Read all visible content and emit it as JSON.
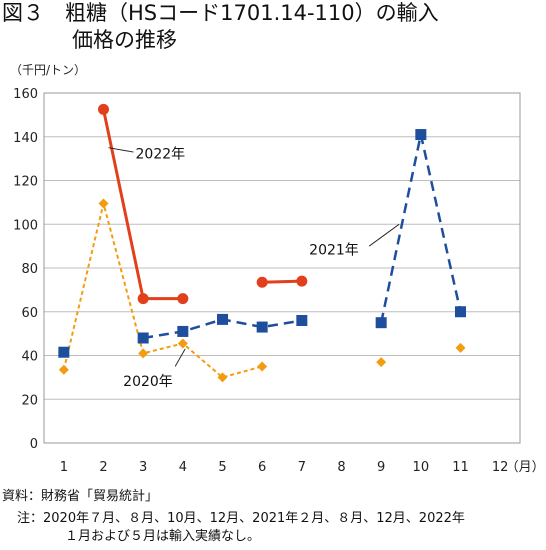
{
  "title": {
    "line1": "図３　粗糖（HSコード1701.14-110）の輸入",
    "line2": "価格の推移"
  },
  "footer": {
    "source": "資料：財務省「貿易統計」",
    "note_line1": "注：2020年７月、８月、10月、12月、2021年２月、８月、12月、2022年",
    "note_line2": "１月および５月は輸入実績なし。"
  },
  "chart_data": {
    "type": "line",
    "ylabel": "（千円/トン）",
    "xlabel": "（月）",
    "ylim": [
      0,
      160
    ],
    "yticks": [
      0,
      20,
      40,
      60,
      80,
      100,
      120,
      140,
      160
    ],
    "categories": [
      "1",
      "2",
      "3",
      "4",
      "5",
      "6",
      "7",
      "8",
      "9",
      "10",
      "11",
      "12"
    ],
    "grid": "horizontal",
    "series": [
      {
        "name": "2020年",
        "color": "#F39C12",
        "style": "dotted",
        "marker": "diamond",
        "values": [
          33.5,
          109.5,
          41,
          45.5,
          30,
          35,
          null,
          null,
          37,
          null,
          43.5,
          null
        ]
      },
      {
        "name": "2021年",
        "color": "#1F4E9C",
        "style": "dashed",
        "marker": "square",
        "values": [
          41.5,
          null,
          48,
          51,
          56.5,
          53,
          56,
          null,
          55,
          141,
          60,
          null
        ]
      },
      {
        "name": "2022年",
        "color": "#E2401C",
        "style": "solid",
        "marker": "circle",
        "values": [
          null,
          152.5,
          66,
          66,
          null,
          73.5,
          74,
          null,
          null,
          null,
          null,
          null
        ]
      }
    ]
  }
}
